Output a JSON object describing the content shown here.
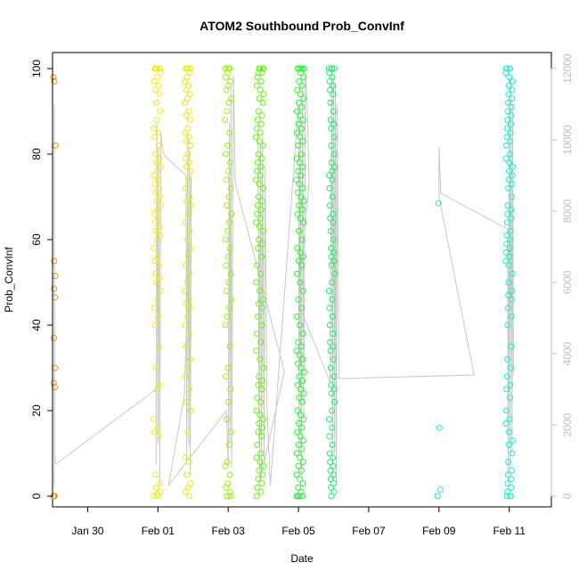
{
  "chart_data": {
    "type": "scatter",
    "title": "ATOM2 Southbound Prob_ConvInf",
    "xlabel": "Date",
    "ylabel": "Prob_ConvInf",
    "xlim": [
      0.0,
      14.2
    ],
    "ylim": [
      0,
      100
    ],
    "x_ticks": [
      {
        "value": 1.0,
        "label": "Jan 30"
      },
      {
        "value": 3.0,
        "label": "Feb 01"
      },
      {
        "value": 5.0,
        "label": "Feb 03"
      },
      {
        "value": 7.0,
        "label": "Feb 05"
      },
      {
        "value": 9.0,
        "label": "Feb 07"
      },
      {
        "value": 11.0,
        "label": "Feb 09"
      },
      {
        "value": 13.0,
        "label": "Feb 11"
      }
    ],
    "y_ticks": [
      0,
      20,
      40,
      60,
      80,
      100
    ],
    "y2lim": [
      0,
      12000
    ],
    "y2_ticks": [
      0,
      2000,
      4000,
      6000,
      8000,
      10000,
      12000
    ],
    "grid": false,
    "clusters": [
      {
        "x": 0.05,
        "width": 0.06,
        "color": "#e8931a",
        "values": [
          98,
          97,
          82,
          55,
          51.5,
          48.5,
          46.5,
          37,
          30,
          26.5,
          25.5,
          0,
          0,
          0,
          0
        ]
      },
      {
        "x": 2.98,
        "width": 0.2,
        "color": "#eded1c",
        "values": [
          100,
          100,
          100,
          100,
          100,
          99,
          98,
          97,
          96,
          95,
          94,
          92,
          90,
          88,
          86,
          85,
          84,
          82,
          80,
          79,
          78,
          77,
          76,
          75,
          74,
          73,
          72,
          71,
          70,
          69,
          68,
          67,
          66,
          65,
          64,
          63,
          62,
          61,
          60,
          58,
          56,
          55,
          54,
          52,
          51,
          50,
          48,
          46,
          44,
          42,
          40,
          35,
          30,
          26,
          25,
          18,
          16,
          15,
          14,
          5,
          3,
          2,
          1,
          0.5,
          0,
          0
        ]
      },
      {
        "x": 3.85,
        "width": 0.18,
        "color": "#d9f21a",
        "values": [
          100,
          100,
          100,
          100,
          99,
          98,
          97,
          96,
          95,
          94,
          93,
          92,
          90,
          89,
          88,
          86,
          85,
          84,
          83,
          82,
          80,
          79,
          78,
          77,
          76,
          74,
          72,
          70,
          69,
          68,
          66,
          64,
          62,
          60,
          58,
          56,
          54,
          52,
          50,
          48,
          46,
          45,
          44,
          42,
          40,
          38,
          35,
          32,
          30,
          28,
          25,
          22,
          20,
          15,
          9,
          8,
          5,
          3,
          2,
          1,
          0
        ]
      },
      {
        "x": 5.0,
        "width": 0.18,
        "color": "#9cf21a",
        "values": [
          100,
          100,
          100,
          100,
          99,
          98,
          97,
          96,
          95,
          93,
          92,
          90,
          88,
          85,
          82,
          80,
          78,
          76,
          74,
          72,
          70,
          68,
          66,
          64,
          62,
          60,
          58,
          56,
          54,
          52,
          50,
          48,
          46,
          44,
          42,
          40,
          35,
          30,
          28,
          25,
          22,
          18,
          15,
          12,
          8,
          7,
          5,
          3,
          2,
          1,
          0,
          0,
          0
        ]
      },
      {
        "x": 5.9,
        "width": 0.22,
        "color": "#6bf21a",
        "values": [
          100,
          100,
          100,
          100,
          99,
          99,
          98,
          97,
          96,
          95,
          94,
          93,
          92,
          90,
          89,
          88,
          87,
          86,
          85,
          84,
          83,
          82,
          80,
          79,
          78,
          77,
          76,
          75,
          74,
          73,
          72,
          70,
          69,
          68,
          67,
          66,
          65,
          64,
          63,
          62,
          60,
          59,
          58,
          56,
          54,
          52,
          50,
          48,
          46,
          45,
          44,
          42,
          40,
          38,
          36,
          34,
          32,
          30,
          28,
          27,
          26,
          25,
          23,
          22,
          20,
          19,
          18,
          17,
          16,
          15,
          14,
          12,
          10,
          9,
          8,
          7,
          6,
          5,
          4,
          3,
          2,
          1,
          0
        ]
      },
      {
        "x": 7.05,
        "width": 0.22,
        "color": "#2ef23a",
        "values": [
          100,
          100,
          100,
          100,
          100,
          99,
          98,
          97,
          96,
          95,
          94,
          93,
          92,
          91,
          90,
          89,
          88,
          87,
          86,
          85,
          84,
          83,
          82,
          80,
          79,
          78,
          77,
          76,
          75,
          74,
          73,
          72,
          71,
          70,
          69,
          68,
          67,
          66,
          65,
          64,
          62,
          60,
          58,
          57,
          56,
          55,
          54,
          52,
          50,
          48,
          46,
          44,
          42,
          40,
          38,
          36,
          35,
          34,
          33,
          32,
          31,
          30,
          29,
          28,
          27,
          26,
          25,
          24,
          23,
          22,
          20,
          19,
          18,
          17,
          16,
          15,
          14,
          13,
          12,
          11,
          10,
          9,
          8,
          7,
          6,
          5,
          4,
          3,
          2,
          1,
          0,
          0,
          0,
          0
        ]
      },
      {
        "x": 7.95,
        "width": 0.16,
        "color": "#1af26b",
        "values": [
          100,
          100,
          100,
          100,
          99,
          98,
          97,
          96,
          95,
          94,
          92,
          90,
          88,
          87,
          86,
          84,
          82,
          80,
          78,
          77,
          76,
          75,
          74,
          72,
          70,
          68,
          66,
          65,
          64,
          62,
          60,
          58,
          57,
          56,
          55,
          54,
          52,
          50,
          48,
          46,
          44,
          42,
          40,
          38,
          36,
          35,
          34,
          32,
          30,
          28,
          26,
          25,
          24,
          22,
          20,
          18,
          16,
          14,
          12,
          10,
          9,
          8,
          7,
          6,
          5,
          4,
          3,
          2,
          1,
          0
        ]
      },
      {
        "x": 11.0,
        "width": 0.08,
        "color": "#1af2b0",
        "values": [
          68.5,
          16,
          1.5,
          0
        ]
      },
      {
        "x": 13.0,
        "width": 0.2,
        "color": "#1af2c8",
        "values": [
          100,
          100,
          100,
          100,
          99,
          98,
          97,
          96,
          95,
          94,
          93,
          92,
          91,
          90,
          89,
          88,
          87,
          86,
          85,
          84,
          83,
          82,
          80,
          79,
          78,
          77,
          76,
          75,
          74,
          73,
          72,
          70,
          68,
          67,
          66,
          65,
          64,
          62,
          61,
          60,
          59,
          58,
          57,
          56,
          55,
          54,
          52,
          50,
          48,
          47,
          46,
          44,
          42,
          40,
          35,
          32,
          30,
          28,
          26,
          25,
          23,
          20,
          18,
          17,
          15,
          13,
          12,
          10,
          8,
          6,
          5,
          4,
          3,
          2,
          1,
          0,
          0,
          0
        ]
      }
    ],
    "secondary_trace": [
      [
        0.05,
        300
      ],
      [
        0.05,
        11000
      ],
      [
        0.06,
        1100
      ],
      [
        0.1,
        900
      ],
      [
        2.95,
        3000
      ],
      [
        2.95,
        900
      ],
      [
        2.97,
        10500
      ],
      [
        3.0,
        1500
      ],
      [
        3.02,
        9800
      ],
      [
        3.05,
        300
      ],
      [
        3.08,
        10200
      ],
      [
        3.15,
        9600
      ],
      [
        3.8,
        9000
      ],
      [
        3.82,
        900
      ],
      [
        3.85,
        10200
      ],
      [
        3.88,
        1400
      ],
      [
        3.9,
        9800
      ],
      [
        3.92,
        600
      ],
      [
        3.95,
        9000
      ],
      [
        3.75,
        2800
      ],
      [
        3.3,
        300
      ],
      [
        4.95,
        2400
      ],
      [
        5.0,
        800
      ],
      [
        5.03,
        10500
      ],
      [
        5.05,
        1500
      ],
      [
        5.08,
        11500
      ],
      [
        5.1,
        800
      ],
      [
        5.15,
        11800
      ],
      [
        5.2,
        8800
      ],
      [
        6.6,
        3500
      ],
      [
        5.9,
        400
      ],
      [
        5.85,
        10200
      ],
      [
        5.88,
        1400
      ],
      [
        5.92,
        9800
      ],
      [
        5.95,
        600
      ],
      [
        5.98,
        10100
      ],
      [
        6.02,
        1000
      ],
      [
        6.05,
        9200
      ],
      [
        6.1,
        2600
      ],
      [
        6.2,
        300
      ],
      [
        7.0,
        11000
      ],
      [
        7.02,
        1200
      ],
      [
        7.05,
        10800
      ],
      [
        7.08,
        600
      ],
      [
        7.12,
        11600
      ],
      [
        7.15,
        2200
      ],
      [
        7.2,
        11900
      ],
      [
        7.25,
        11000
      ],
      [
        7.3,
        8800
      ],
      [
        7.0,
        5400
      ],
      [
        7.9,
        3200
      ],
      [
        7.95,
        11900
      ],
      [
        7.97,
        400
      ],
      [
        8.0,
        11800
      ],
      [
        8.03,
        1200
      ],
      [
        8.05,
        11600
      ],
      [
        8.08,
        400
      ],
      [
        8.1,
        11000
      ],
      [
        8.15,
        3300
      ],
      [
        12.0,
        3400
      ],
      [
        11.0,
        8400
      ],
      [
        11.0,
        9800
      ],
      [
        11.05,
        8500
      ],
      [
        12.95,
        7500
      ],
      [
        12.97,
        300
      ],
      [
        13.0,
        12000
      ],
      [
        13.02,
        800
      ],
      [
        13.05,
        11700
      ],
      [
        13.08,
        1200
      ],
      [
        13.1,
        11000
      ],
      [
        13.12,
        3400
      ]
    ]
  }
}
